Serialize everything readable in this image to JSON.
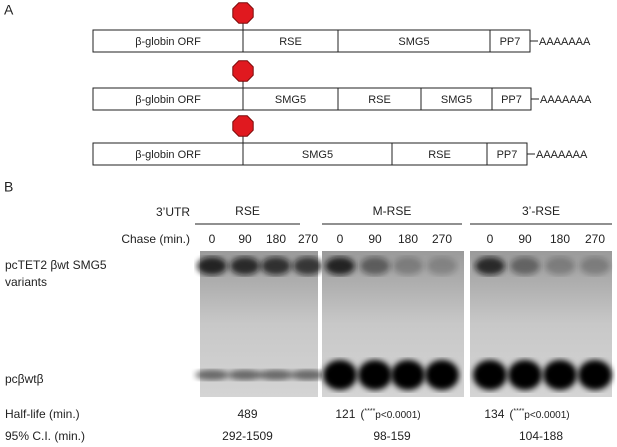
{
  "panel_a": {
    "label": "A",
    "constructs": [
      {
        "segments": [
          "β-globin ORF",
          "RSE",
          "SMG5",
          "PP7"
        ],
        "tail": "AAAAAAA"
      },
      {
        "segments": [
          "β-globin ORF",
          "SMG5",
          "RSE",
          "SMG5",
          "PP7"
        ],
        "tail": "AAAAAAA"
      },
      {
        "segments": [
          "β-globin ORF",
          "SMG5",
          "RSE",
          "PP7"
        ],
        "tail": "AAAAAAA"
      }
    ]
  },
  "panel_b": {
    "label": "B",
    "utr_label": "3’UTR",
    "chase_label": "Chase (min.)",
    "upper_band_label": [
      "pcTET2 βwt SMG5",
      "variants"
    ],
    "lower_band_label": "pcβwtβ",
    "half_life_label": "Half-life (min.)",
    "ci_label": "95% C.I. (min.)",
    "groups": [
      {
        "name": "RSE",
        "times": [
          "0",
          "90",
          "180",
          "270"
        ],
        "half_life": "489",
        "significance": null,
        "ci": "292-1509"
      },
      {
        "name": "M-RSE",
        "times": [
          "0",
          "90",
          "180",
          "270"
        ],
        "half_life": "121",
        "significance": [
          "(",
          "****",
          "p<0.0001)"
        ],
        "ci": "98-159"
      },
      {
        "name": "3’-RSE",
        "times": [
          "0",
          "90",
          "180",
          "270"
        ],
        "half_life": "134",
        "significance": [
          "(",
          "****",
          "p<0.0001)"
        ],
        "ci": "104-188"
      }
    ]
  }
}
